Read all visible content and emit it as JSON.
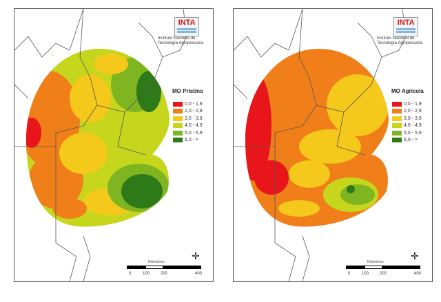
{
  "maps": [
    {
      "title": "MO Pristino",
      "logo": "INTA",
      "institution": "Instituto Nacional de Tecnología Agropecuaria"
    },
    {
      "title": "MO Agricola",
      "logo": "INTA",
      "institution": "Instituto Nacional de Tecnología Agropecuaria"
    }
  ],
  "legend": [
    {
      "label": "0,0 - 1,9",
      "color": "#e8151b"
    },
    {
      "label": "2,0 - 2,9",
      "color": "#f07f1a"
    },
    {
      "label": "3,0 - 3,9",
      "color": "#f5c81c"
    },
    {
      "label": "4,0 - 4,9",
      "color": "#c6d61c"
    },
    {
      "label": "5,0 - 5,9",
      "color": "#7fb521"
    },
    {
      "label": "6,0 - >",
      "color": "#2f7a18"
    }
  ],
  "scale": {
    "title": "Kilómetros",
    "ticks": [
      "0",
      "100",
      "200",
      "400"
    ]
  },
  "north_label": "N"
}
